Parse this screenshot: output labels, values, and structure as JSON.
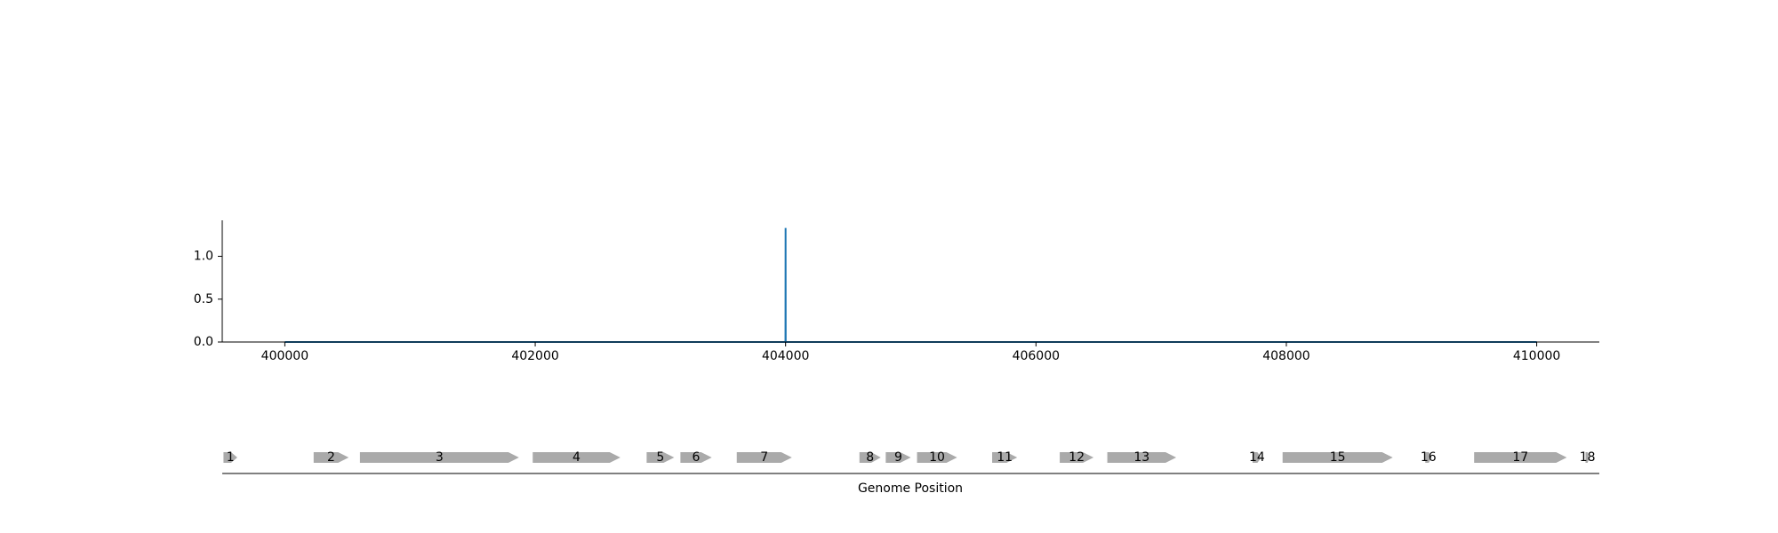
{
  "chart_data": [
    {
      "type": "line",
      "title": "",
      "xlabel": "",
      "ylabel": "",
      "xlim": [
        399500,
        410500
      ],
      "ylim": [
        0,
        1.42
      ],
      "x_ticks": [
        400000,
        402000,
        404000,
        406000,
        408000,
        410000
      ],
      "x_tick_labels": [
        "400000",
        "402000",
        "404000",
        "406000",
        "408000",
        "410000"
      ],
      "y_ticks": [
        0.0,
        0.5,
        1.0
      ],
      "y_tick_labels": [
        "0.0",
        "0.5",
        "1.0"
      ],
      "grid": false,
      "series": [
        {
          "color": "#1f77b4",
          "x": [
            400000,
            403999,
            404000,
            404001,
            410000
          ],
          "y": [
            0,
            0,
            1.33,
            0,
            0
          ]
        }
      ]
    },
    {
      "type": "gene-track",
      "xlabel": "Genome Position",
      "xlim": [
        399500,
        410500
      ],
      "gene_color": "#aaaaaa",
      "genes": [
        {
          "label": "1",
          "start": 399510,
          "end": 399620
        },
        {
          "label": "2",
          "start": 400230,
          "end": 400510
        },
        {
          "label": "3",
          "start": 400600,
          "end": 401870
        },
        {
          "label": "4",
          "start": 401980,
          "end": 402680
        },
        {
          "label": "5",
          "start": 402890,
          "end": 403110
        },
        {
          "label": "6",
          "start": 403160,
          "end": 403410
        },
        {
          "label": "7",
          "start": 403610,
          "end": 404050
        },
        {
          "label": "8",
          "start": 404590,
          "end": 404760
        },
        {
          "label": "9",
          "start": 404800,
          "end": 405000
        },
        {
          "label": "10",
          "start": 405050,
          "end": 405370
        },
        {
          "label": "11",
          "start": 405650,
          "end": 405850
        },
        {
          "label": "12",
          "start": 406190,
          "end": 406460
        },
        {
          "label": "13",
          "start": 406570,
          "end": 407120
        },
        {
          "label": "14",
          "start": 407730,
          "end": 407800
        },
        {
          "label": "15",
          "start": 407970,
          "end": 408850
        },
        {
          "label": "16",
          "start": 409110,
          "end": 409160
        },
        {
          "label": "17",
          "start": 409500,
          "end": 410240
        },
        {
          "label": "18",
          "start": 410390,
          "end": 410420
        }
      ]
    }
  ]
}
